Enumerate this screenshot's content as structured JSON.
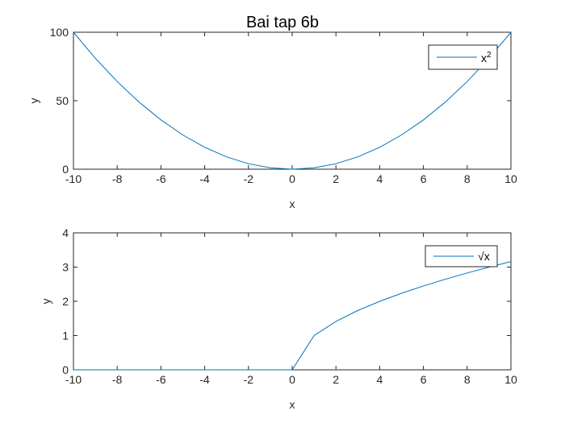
{
  "colors": {
    "series": "#0072bd",
    "axes": "#262626",
    "background": "#ffffff"
  },
  "chart_data": [
    {
      "type": "line",
      "title": "Bai tap 6b",
      "xlabel": "x",
      "ylabel": "y",
      "xlim": [
        -10,
        10
      ],
      "ylim": [
        0,
        100
      ],
      "xticks": [
        "-10",
        "-8",
        "-6",
        "-4",
        "-2",
        "0",
        "2",
        "4",
        "6",
        "8",
        "10"
      ],
      "yticks": [
        "0",
        "50",
        "100"
      ],
      "grid": false,
      "legend_position": "top-right",
      "legend_label_base": "x",
      "legend_label_exponent": "2",
      "x": [
        -10,
        -9,
        -8,
        -7,
        -6,
        -5,
        -4,
        -3,
        -2,
        -1,
        0,
        1,
        2,
        3,
        4,
        5,
        6,
        7,
        8,
        9,
        10
      ],
      "series": [
        {
          "values": [
            100,
            81,
            64,
            49,
            36,
            25,
            16,
            9,
            4,
            1,
            0,
            1,
            4,
            9,
            16,
            25,
            36,
            49,
            64,
            81,
            100
          ]
        }
      ]
    },
    {
      "type": "line",
      "title": "",
      "xlabel": "x",
      "ylabel": "y",
      "xlim": [
        -10,
        10
      ],
      "ylim": [
        0,
        4
      ],
      "xticks": [
        "-10",
        "-8",
        "-6",
        "-4",
        "-2",
        "0",
        "2",
        "4",
        "6",
        "8",
        "10"
      ],
      "yticks": [
        "0",
        "1",
        "2",
        "3",
        "4"
      ],
      "grid": false,
      "legend_position": "top-right",
      "legend_label_symbol": "√",
      "legend_label_base": "x",
      "x": [
        -10,
        -9,
        -8,
        -7,
        -6,
        -5,
        -4,
        -3,
        -2,
        -1,
        0,
        1,
        2,
        3,
        4,
        5,
        6,
        7,
        8,
        9,
        10
      ],
      "series": [
        {
          "values": [
            0,
            0,
            0,
            0,
            0,
            0,
            0,
            0,
            0,
            0,
            0,
            1,
            1.414,
            1.732,
            2,
            2.236,
            2.449,
            2.646,
            2.828,
            3,
            3.162
          ]
        }
      ]
    }
  ]
}
